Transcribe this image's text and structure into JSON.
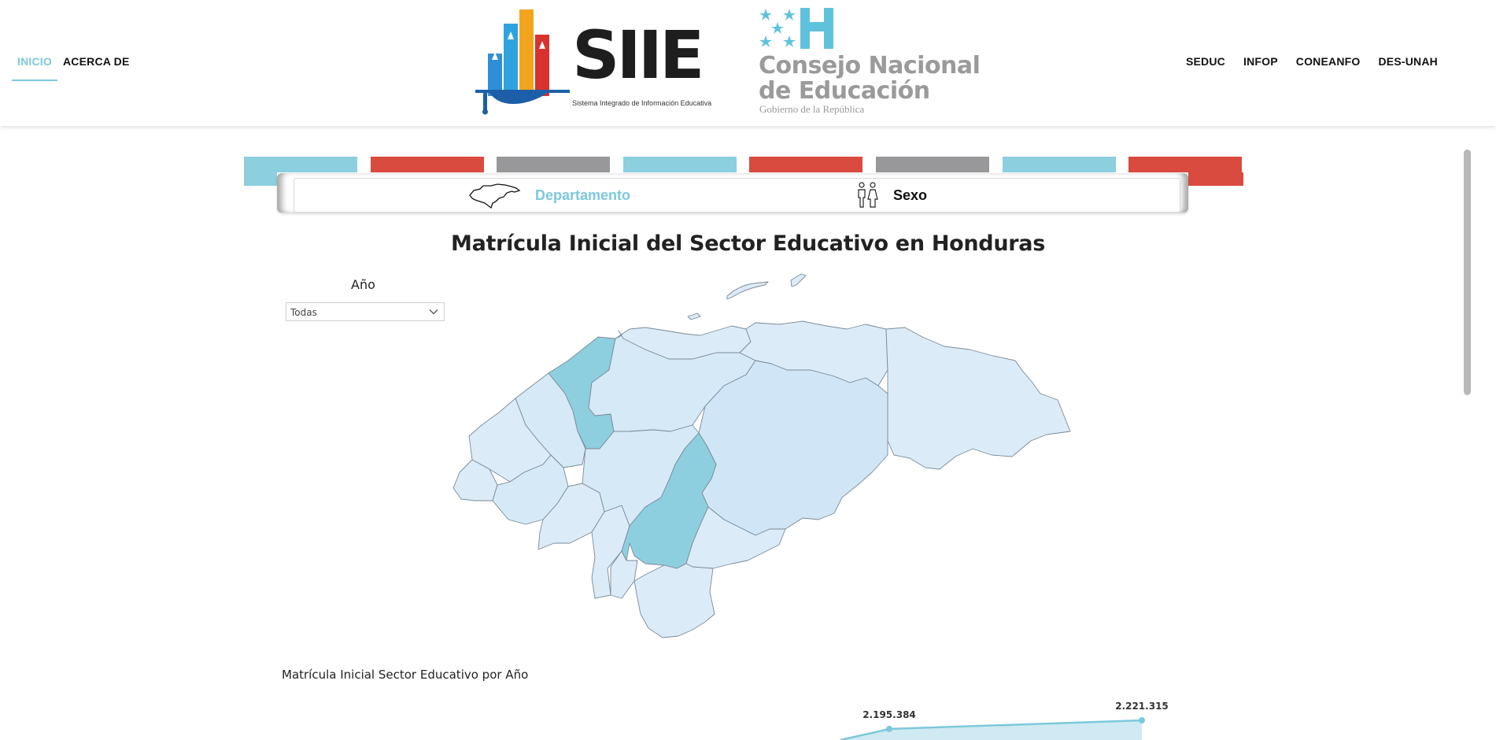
{
  "nav": {
    "left": [
      {
        "label": "INICIO",
        "active": true
      },
      {
        "label": "ACERCA DE",
        "active": false
      }
    ],
    "right": [
      "SEDUC",
      "INFOP",
      "CONEANFO",
      "DES-UNAH"
    ]
  },
  "logos": {
    "siie": {
      "text": "SIIE",
      "subtitle": "Sistema Integrado de Información Educativa"
    },
    "cne": {
      "line1": "Consejo Nacional",
      "line2": "de Educación",
      "gov": "Gobierno de la República"
    }
  },
  "stripe_colors": [
    "#8ccfdf",
    "#d94a3f",
    "#98989b",
    "#8ccfdf",
    "#d94a3f",
    "#98989b",
    "#8ccfdf",
    "#d94a3f"
  ],
  "tabs": [
    {
      "label": "Departamento",
      "icon": "honduras-map-icon",
      "active": true,
      "color": "#7dc8dc"
    },
    {
      "label": "Sexo",
      "icon": "male-female-icon",
      "active": false,
      "color": "#111111"
    }
  ],
  "page": {
    "title": "Matrícula Inicial del Sector Educativo en Honduras"
  },
  "filter": {
    "label": "Año",
    "value": "Todas"
  },
  "map": {
    "base_color": "#dcebf8",
    "highlight_color": "#8ecfdf",
    "mid_color": "#d0e6f7",
    "border_color": "#7a8a96"
  },
  "chart_section": {
    "title": "Matrícula Inicial Sector Educativo por Año"
  },
  "chart_data": {
    "type": "area",
    "title": "Matrícula Inicial Sector Educativo por Año",
    "data_labels": [
      "2.195.384",
      "2.221.315"
    ],
    "values": [
      2195384,
      2221315
    ],
    "color": "#7dc8dc"
  }
}
